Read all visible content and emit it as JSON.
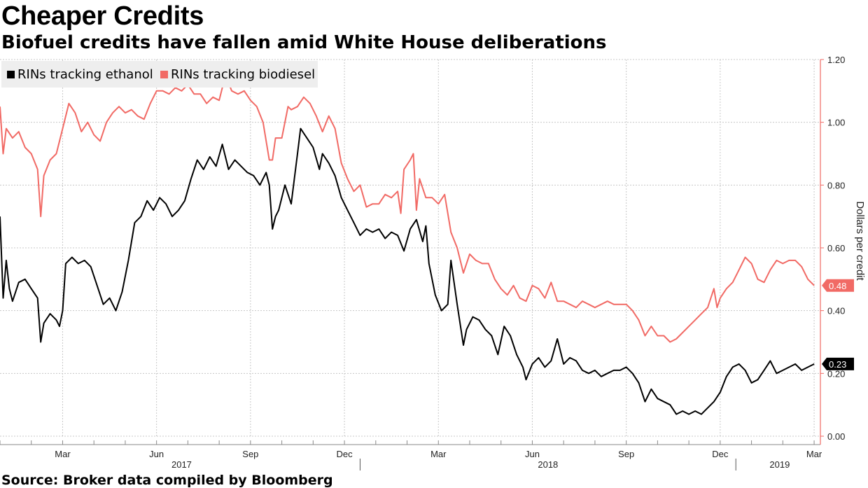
{
  "title": "Cheaper Credits",
  "subtitle": "Biofuel credits have fallen amid White House deliberations",
  "source": "Source: Broker data compiled by Bloomberg",
  "chart_data": {
    "type": "line",
    "title": "Cheaper Credits",
    "ylabel": "Dollars per credit",
    "ylim": [
      0,
      1.2
    ],
    "yticks": [
      "0.00",
      "0.20",
      "0.40",
      "0.60",
      "0.80",
      "1.00",
      "1.20"
    ],
    "ytick_values": [
      0,
      0.2,
      0.4,
      0.6,
      0.8,
      1.0,
      1.2
    ],
    "xlim": [
      0,
      26.2
    ],
    "xtick_labels": [
      {
        "label": "Mar",
        "m": 2
      },
      {
        "label": "Jun",
        "m": 5
      },
      {
        "label": "Sep",
        "m": 8
      },
      {
        "label": "Dec",
        "m": 11
      },
      {
        "label": "Mar",
        "m": 14
      },
      {
        "label": "Jun",
        "m": 17
      },
      {
        "label": "Sep",
        "m": 20
      },
      {
        "label": "Dec",
        "m": 23
      },
      {
        "label": "Mar",
        "m": 26
      }
    ],
    "year_labels": [
      {
        "label": "2017",
        "m": 5.8
      },
      {
        "label": "2018",
        "m": 17.5
      },
      {
        "label": "2019",
        "m": 24.9
      }
    ],
    "year_separators": [
      11.5,
      23.5
    ],
    "grid": true,
    "x_unit": "months since Jan 2017",
    "series": [
      {
        "name": "RINs tracking ethanol",
        "color": "#000000",
        "last_label": "0.23",
        "points": [
          [
            0,
            0.7
          ],
          [
            0.1,
            0.44
          ],
          [
            0.2,
            0.56
          ],
          [
            0.3,
            0.47
          ],
          [
            0.4,
            0.43
          ],
          [
            0.6,
            0.49
          ],
          [
            0.8,
            0.5
          ],
          [
            1.0,
            0.47
          ],
          [
            1.2,
            0.44
          ],
          [
            1.3,
            0.3
          ],
          [
            1.4,
            0.36
          ],
          [
            1.6,
            0.39
          ],
          [
            1.8,
            0.37
          ],
          [
            1.9,
            0.35
          ],
          [
            2.0,
            0.4
          ],
          [
            2.1,
            0.55
          ],
          [
            2.3,
            0.57
          ],
          [
            2.5,
            0.55
          ],
          [
            2.7,
            0.56
          ],
          [
            2.9,
            0.54
          ],
          [
            3.1,
            0.48
          ],
          [
            3.3,
            0.42
          ],
          [
            3.5,
            0.44
          ],
          [
            3.7,
            0.4
          ],
          [
            3.9,
            0.46
          ],
          [
            4.1,
            0.56
          ],
          [
            4.3,
            0.68
          ],
          [
            4.5,
            0.7
          ],
          [
            4.7,
            0.75
          ],
          [
            4.9,
            0.72
          ],
          [
            5.1,
            0.76
          ],
          [
            5.3,
            0.74
          ],
          [
            5.5,
            0.7
          ],
          [
            5.7,
            0.72
          ],
          [
            5.9,
            0.75
          ],
          [
            6.1,
            0.82
          ],
          [
            6.3,
            0.88
          ],
          [
            6.5,
            0.85
          ],
          [
            6.7,
            0.89
          ],
          [
            6.9,
            0.86
          ],
          [
            7.1,
            0.93
          ],
          [
            7.3,
            0.85
          ],
          [
            7.5,
            0.88
          ],
          [
            7.7,
            0.86
          ],
          [
            7.9,
            0.84
          ],
          [
            8.1,
            0.83
          ],
          [
            8.3,
            0.8
          ],
          [
            8.5,
            0.84
          ],
          [
            8.6,
            0.8
          ],
          [
            8.7,
            0.66
          ],
          [
            8.8,
            0.7
          ],
          [
            8.9,
            0.72
          ],
          [
            9.1,
            0.8
          ],
          [
            9.3,
            0.74
          ],
          [
            9.5,
            0.9
          ],
          [
            9.6,
            0.98
          ],
          [
            9.8,
            0.95
          ],
          [
            10.0,
            0.92
          ],
          [
            10.2,
            0.85
          ],
          [
            10.3,
            0.9
          ],
          [
            10.5,
            0.87
          ],
          [
            10.7,
            0.83
          ],
          [
            10.9,
            0.76
          ],
          [
            11.1,
            0.72
          ],
          [
            11.3,
            0.68
          ],
          [
            11.5,
            0.64
          ],
          [
            11.7,
            0.66
          ],
          [
            11.9,
            0.65
          ],
          [
            12.1,
            0.66
          ],
          [
            12.3,
            0.63
          ],
          [
            12.5,
            0.65
          ],
          [
            12.7,
            0.64
          ],
          [
            12.9,
            0.59
          ],
          [
            13.1,
            0.66
          ],
          [
            13.3,
            0.69
          ],
          [
            13.5,
            0.62
          ],
          [
            13.6,
            0.67
          ],
          [
            13.7,
            0.55
          ],
          [
            13.9,
            0.45
          ],
          [
            14.1,
            0.4
          ],
          [
            14.3,
            0.42
          ],
          [
            14.4,
            0.56
          ],
          [
            14.6,
            0.42
          ],
          [
            14.8,
            0.29
          ],
          [
            14.9,
            0.34
          ],
          [
            15.1,
            0.38
          ],
          [
            15.3,
            0.37
          ],
          [
            15.5,
            0.34
          ],
          [
            15.7,
            0.32
          ],
          [
            15.9,
            0.26
          ],
          [
            16.1,
            0.35
          ],
          [
            16.3,
            0.32
          ],
          [
            16.5,
            0.26
          ],
          [
            16.7,
            0.22
          ],
          [
            16.8,
            0.18
          ],
          [
            17.0,
            0.23
          ],
          [
            17.2,
            0.25
          ],
          [
            17.4,
            0.22
          ],
          [
            17.6,
            0.24
          ],
          [
            17.8,
            0.31
          ],
          [
            18.0,
            0.23
          ],
          [
            18.2,
            0.25
          ],
          [
            18.4,
            0.24
          ],
          [
            18.6,
            0.21
          ],
          [
            18.8,
            0.2
          ],
          [
            19.0,
            0.21
          ],
          [
            19.2,
            0.19
          ],
          [
            19.4,
            0.2
          ],
          [
            19.6,
            0.21
          ],
          [
            19.8,
            0.21
          ],
          [
            20.0,
            0.22
          ],
          [
            20.2,
            0.2
          ],
          [
            20.4,
            0.17
          ],
          [
            20.6,
            0.11
          ],
          [
            20.8,
            0.15
          ],
          [
            21.0,
            0.12
          ],
          [
            21.2,
            0.11
          ],
          [
            21.4,
            0.1
          ],
          [
            21.6,
            0.07
          ],
          [
            21.8,
            0.08
          ],
          [
            22.0,
            0.07
          ],
          [
            22.2,
            0.08
          ],
          [
            22.4,
            0.07
          ],
          [
            22.6,
            0.09
          ],
          [
            22.8,
            0.11
          ],
          [
            23.0,
            0.14
          ],
          [
            23.2,
            0.19
          ],
          [
            23.4,
            0.22
          ],
          [
            23.6,
            0.23
          ],
          [
            23.8,
            0.21
          ],
          [
            24.0,
            0.17
          ],
          [
            24.2,
            0.18
          ],
          [
            24.4,
            0.21
          ],
          [
            24.6,
            0.24
          ],
          [
            24.8,
            0.2
          ],
          [
            25.0,
            0.21
          ],
          [
            25.2,
            0.22
          ],
          [
            25.4,
            0.23
          ],
          [
            25.6,
            0.21
          ],
          [
            25.8,
            0.22
          ],
          [
            26.0,
            0.23
          ]
        ]
      },
      {
        "name": "RINs tracking biodiesel",
        "color": "#f16a65",
        "last_label": "0.48",
        "points": [
          [
            0,
            1.05
          ],
          [
            0.1,
            0.9
          ],
          [
            0.2,
            0.98
          ],
          [
            0.4,
            0.95
          ],
          [
            0.6,
            0.97
          ],
          [
            0.8,
            0.92
          ],
          [
            1.0,
            0.9
          ],
          [
            1.2,
            0.85
          ],
          [
            1.3,
            0.7
          ],
          [
            1.4,
            0.83
          ],
          [
            1.6,
            0.88
          ],
          [
            1.8,
            0.9
          ],
          [
            2.0,
            0.98
          ],
          [
            2.2,
            1.06
          ],
          [
            2.4,
            1.03
          ],
          [
            2.6,
            0.97
          ],
          [
            2.8,
            1.0
          ],
          [
            3.0,
            0.96
          ],
          [
            3.2,
            0.94
          ],
          [
            3.4,
            1.0
          ],
          [
            3.6,
            1.03
          ],
          [
            3.8,
            1.05
          ],
          [
            4.0,
            1.03
          ],
          [
            4.2,
            1.04
          ],
          [
            4.4,
            1.02
          ],
          [
            4.6,
            1.01
          ],
          [
            4.8,
            1.06
          ],
          [
            5.0,
            1.1
          ],
          [
            5.2,
            1.1
          ],
          [
            5.4,
            1.09
          ],
          [
            5.6,
            1.11
          ],
          [
            5.8,
            1.1
          ],
          [
            6.0,
            1.12
          ],
          [
            6.2,
            1.09
          ],
          [
            6.4,
            1.09
          ],
          [
            6.6,
            1.06
          ],
          [
            6.8,
            1.08
          ],
          [
            7.0,
            1.07
          ],
          [
            7.2,
            1.15
          ],
          [
            7.4,
            1.1
          ],
          [
            7.6,
            1.09
          ],
          [
            7.8,
            1.1
          ],
          [
            8.0,
            1.07
          ],
          [
            8.2,
            1.05
          ],
          [
            8.4,
            1.0
          ],
          [
            8.6,
            0.88
          ],
          [
            8.7,
            0.88
          ],
          [
            8.8,
            0.95
          ],
          [
            9.0,
            0.95
          ],
          [
            9.2,
            1.05
          ],
          [
            9.3,
            1.04
          ],
          [
            9.5,
            1.05
          ],
          [
            9.7,
            1.08
          ],
          [
            9.9,
            1.06
          ],
          [
            10.1,
            1.02
          ],
          [
            10.3,
            0.97
          ],
          [
            10.5,
            1.02
          ],
          [
            10.7,
            0.98
          ],
          [
            10.9,
            0.87
          ],
          [
            11.1,
            0.82
          ],
          [
            11.3,
            0.78
          ],
          [
            11.5,
            0.8
          ],
          [
            11.7,
            0.73
          ],
          [
            11.9,
            0.74
          ],
          [
            12.1,
            0.74
          ],
          [
            12.3,
            0.77
          ],
          [
            12.5,
            0.76
          ],
          [
            12.7,
            0.78
          ],
          [
            12.8,
            0.71
          ],
          [
            12.9,
            0.85
          ],
          [
            13.1,
            0.88
          ],
          [
            13.2,
            0.9
          ],
          [
            13.3,
            0.72
          ],
          [
            13.4,
            0.82
          ],
          [
            13.6,
            0.76
          ],
          [
            13.8,
            0.76
          ],
          [
            14.0,
            0.74
          ],
          [
            14.2,
            0.77
          ],
          [
            14.4,
            0.65
          ],
          [
            14.6,
            0.6
          ],
          [
            14.8,
            0.52
          ],
          [
            15.0,
            0.58
          ],
          [
            15.2,
            0.56
          ],
          [
            15.4,
            0.55
          ],
          [
            15.6,
            0.55
          ],
          [
            15.8,
            0.5
          ],
          [
            16.0,
            0.47
          ],
          [
            16.2,
            0.45
          ],
          [
            16.4,
            0.48
          ],
          [
            16.6,
            0.44
          ],
          [
            16.8,
            0.43
          ],
          [
            17.0,
            0.48
          ],
          [
            17.2,
            0.47
          ],
          [
            17.4,
            0.44
          ],
          [
            17.6,
            0.49
          ],
          [
            17.8,
            0.43
          ],
          [
            18.0,
            0.43
          ],
          [
            18.2,
            0.42
          ],
          [
            18.4,
            0.41
          ],
          [
            18.6,
            0.43
          ],
          [
            18.8,
            0.42
          ],
          [
            19.0,
            0.41
          ],
          [
            19.2,
            0.42
          ],
          [
            19.4,
            0.43
          ],
          [
            19.6,
            0.42
          ],
          [
            19.8,
            0.42
          ],
          [
            20.0,
            0.42
          ],
          [
            20.2,
            0.4
          ],
          [
            20.4,
            0.37
          ],
          [
            20.6,
            0.32
          ],
          [
            20.8,
            0.35
          ],
          [
            21.0,
            0.32
          ],
          [
            21.2,
            0.32
          ],
          [
            21.4,
            0.3
          ],
          [
            21.6,
            0.31
          ],
          [
            21.8,
            0.33
          ],
          [
            22.0,
            0.35
          ],
          [
            22.2,
            0.37
          ],
          [
            22.4,
            0.39
          ],
          [
            22.6,
            0.41
          ],
          [
            22.8,
            0.47
          ],
          [
            22.9,
            0.41
          ],
          [
            23.0,
            0.44
          ],
          [
            23.2,
            0.47
          ],
          [
            23.4,
            0.49
          ],
          [
            23.6,
            0.53
          ],
          [
            23.8,
            0.57
          ],
          [
            24.0,
            0.55
          ],
          [
            24.2,
            0.5
          ],
          [
            24.4,
            0.49
          ],
          [
            24.6,
            0.53
          ],
          [
            24.8,
            0.56
          ],
          [
            25.0,
            0.55
          ],
          [
            25.2,
            0.56
          ],
          [
            25.4,
            0.56
          ],
          [
            25.6,
            0.54
          ],
          [
            25.8,
            0.5
          ],
          [
            26.0,
            0.48
          ]
        ]
      }
    ]
  }
}
